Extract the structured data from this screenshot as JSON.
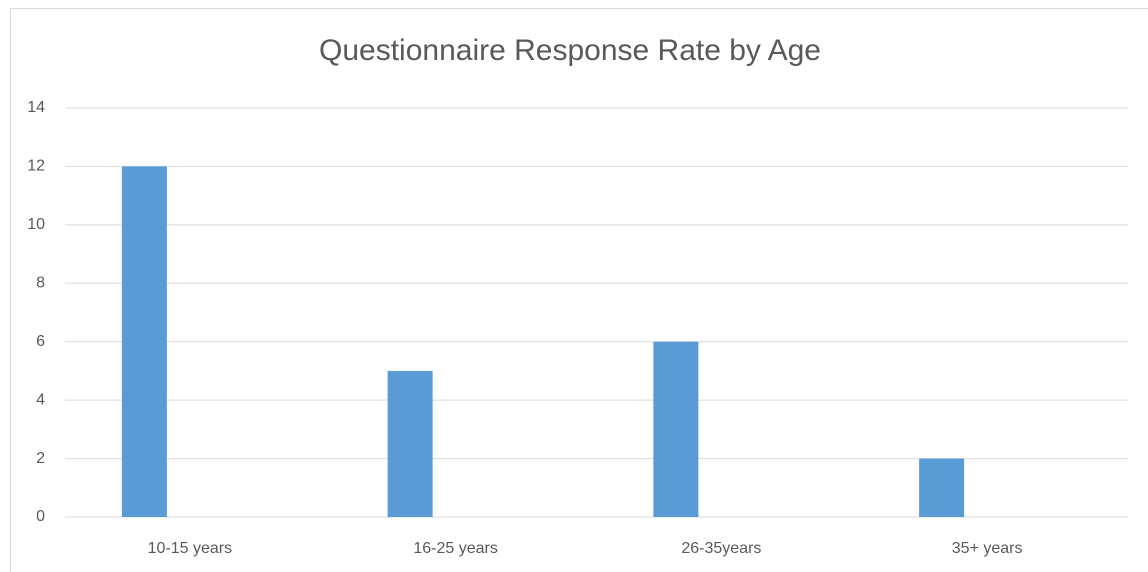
{
  "chart_data": {
    "type": "bar",
    "title": "Questionnaire Response Rate by Age",
    "categories": [
      "10-15 years",
      "16-25 years",
      "26-35years",
      "35+ years"
    ],
    "values": [
      12,
      5,
      6,
      2
    ],
    "color": "#5b9bd5",
    "ylim": [
      0,
      14
    ],
    "yticks": [
      0,
      2,
      4,
      6,
      8,
      10,
      12,
      14
    ],
    "grid": true
  }
}
